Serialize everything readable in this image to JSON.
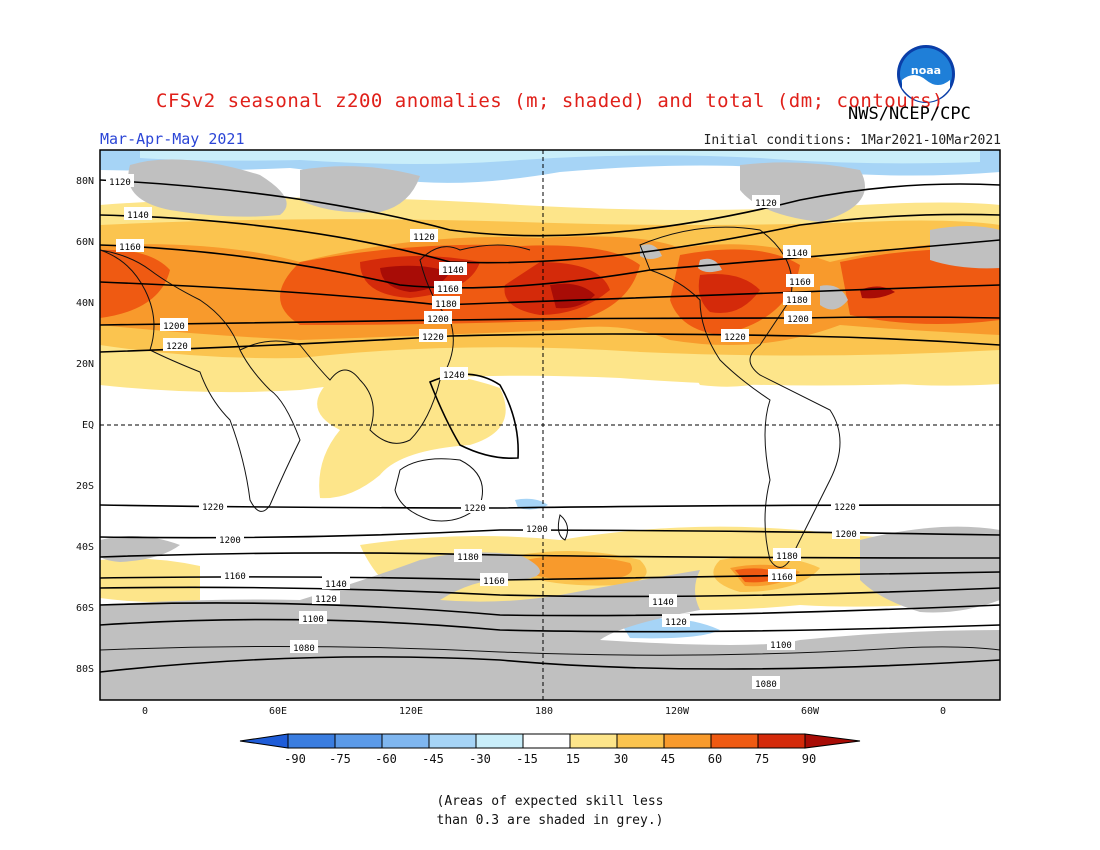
{
  "title": "CFSv2 seasonal z200 anomalies (m; shaded) and total (dm; contours)",
  "agency": "NWS/NCEP/CPC",
  "period": "Mar-Apr-May 2021",
  "initial_conditions": "Initial conditions: 1Mar2021-10Mar2021",
  "logo": {
    "icon": "noaa-logo-icon",
    "text": "noaa"
  },
  "map": {
    "lat_ticks": [
      "80N",
      "60N",
      "40N",
      "20N",
      "EQ",
      "20S",
      "40S",
      "60S",
      "80S"
    ],
    "lon_ticks": [
      "0",
      "60E",
      "120E",
      "180",
      "120W",
      "60W",
      "0"
    ],
    "contour_levels": [
      "1080",
      "1100",
      "1120",
      "1140",
      "1160",
      "1180",
      "1200",
      "1220",
      "1240"
    ]
  },
  "colorbar": {
    "labels": [
      "-90",
      "-75",
      "-60",
      "-45",
      "-30",
      "-15",
      "15",
      "30",
      "45",
      "60",
      "75",
      "90"
    ],
    "colors": [
      "#1e5cd8",
      "#3a7de0",
      "#5b9ae8",
      "#7fb6ef",
      "#a6d4f6",
      "#c9eefa",
      "#ffffff",
      "#fde58a",
      "#fbc44f",
      "#f89a2c",
      "#ef5a12",
      "#d42a0a",
      "#a80c06"
    ]
  },
  "note": {
    "line1": "(Areas of expected skill less",
    "line2": "than 0.3 are shaded in grey.)"
  }
}
